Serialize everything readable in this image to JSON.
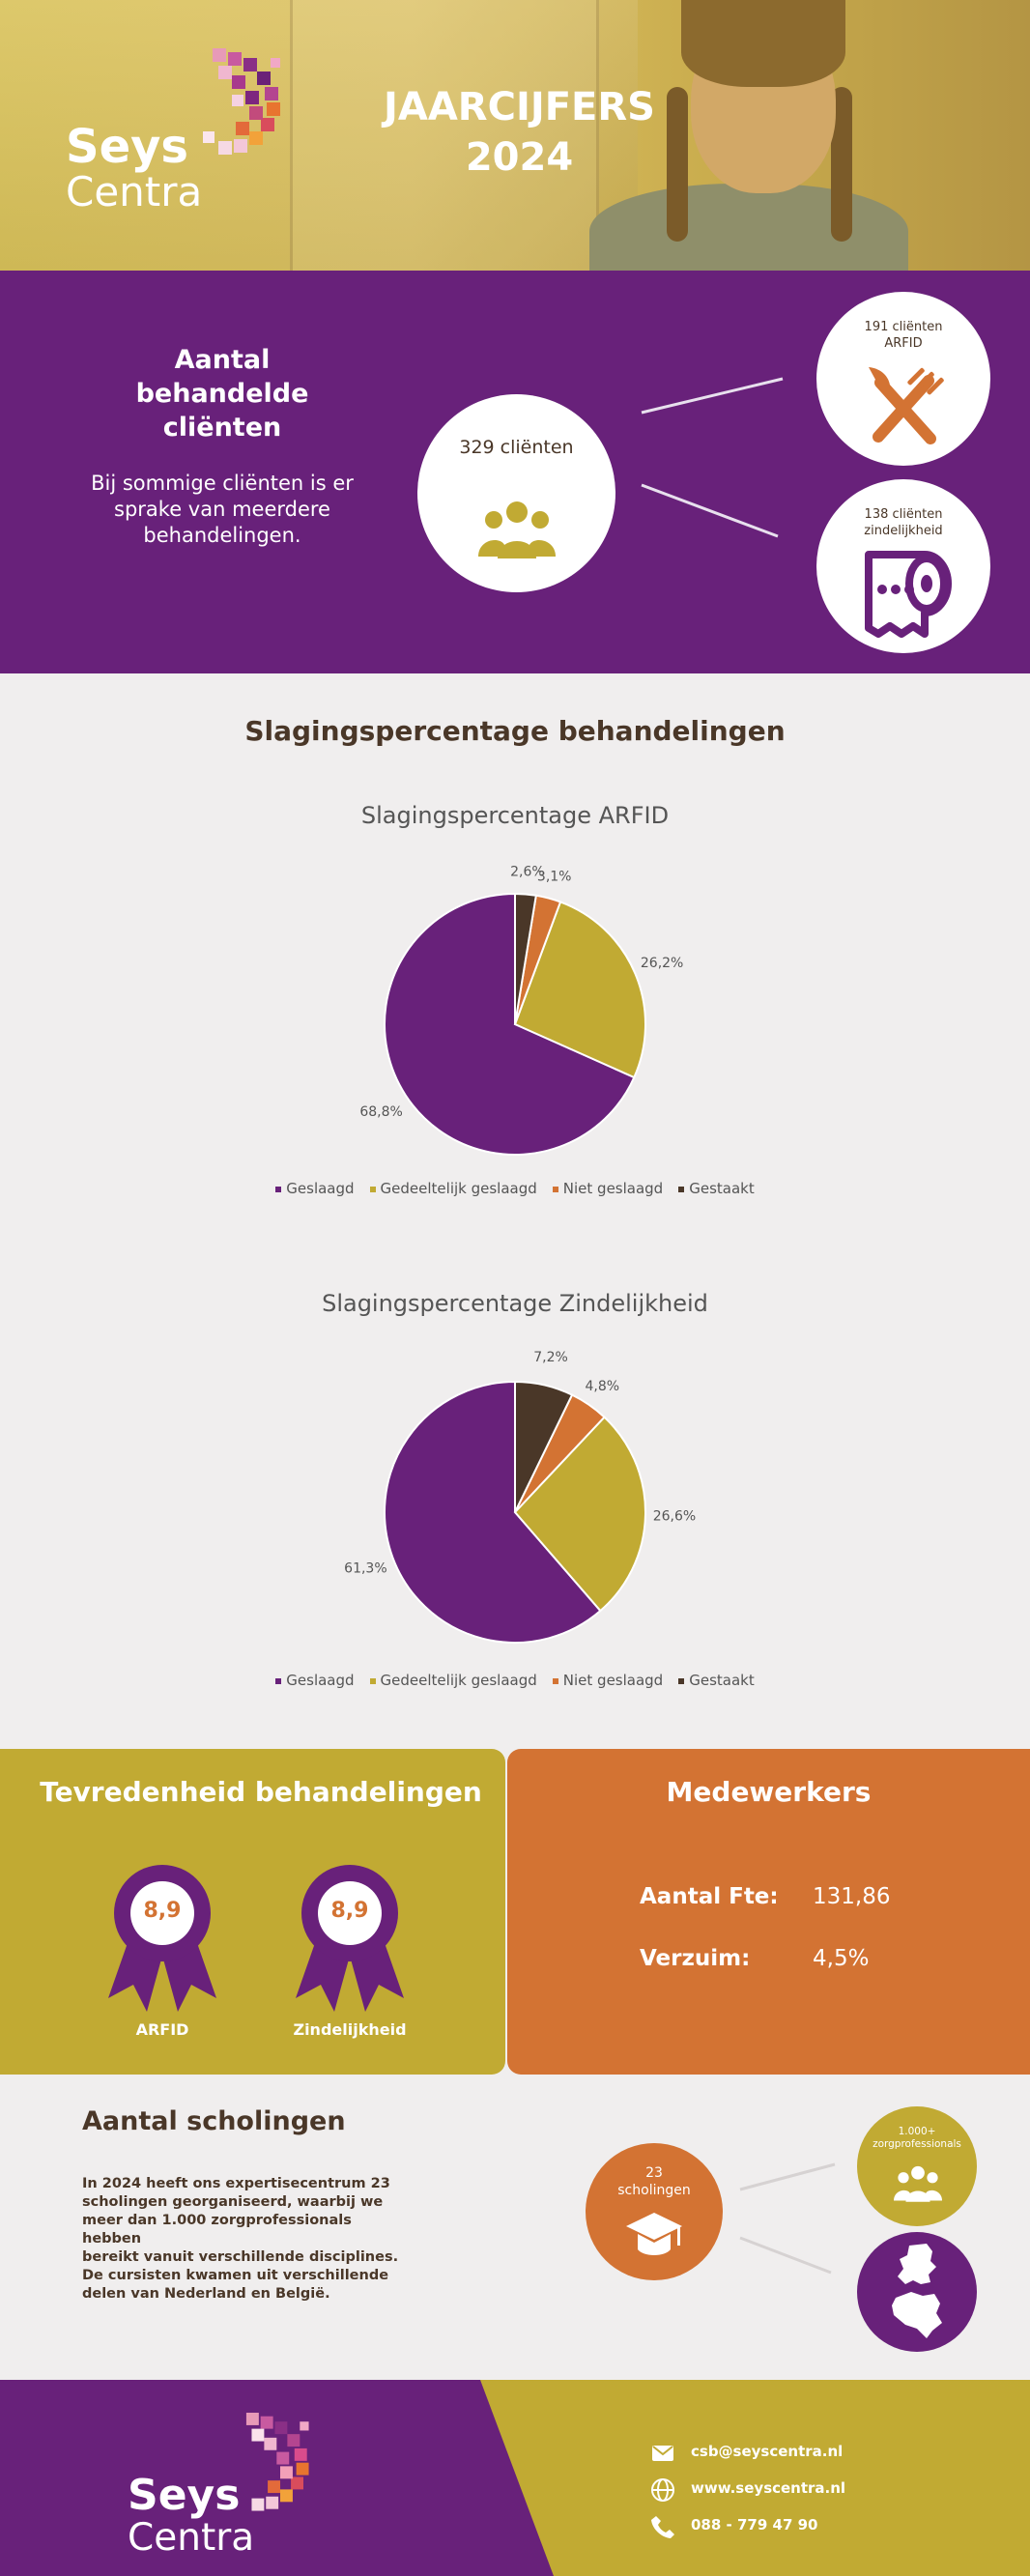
{
  "brand": {
    "logo_line1": "Seys",
    "logo_line2": "Centra",
    "colors": {
      "purple": "#68217a",
      "gold": "#c1aa33",
      "orange": "#d37333",
      "dark": "#4a3728",
      "background": "#f0eeee"
    }
  },
  "header": {
    "title_line1": "JAARCIJFERS",
    "title_line2": "2024"
  },
  "clients": {
    "heading_line1": "Aantal",
    "heading_line2": "behandelde",
    "heading_line3": "cliënten",
    "note_line1": "Bij sommige cliënten is er",
    "note_line2": "sprake van meerdere",
    "note_line3": "behandelingen.",
    "total_label": "329 cliënten",
    "total_icon": "people-group-icon",
    "arfid_line1": "191 cliënten",
    "arfid_line2": "ARFID",
    "arfid_icon": "fork-knife-icon",
    "zind_line1": "138 cliënten",
    "zind_line2": "zindelijkheid",
    "zind_icon": "toilet-roll-icon"
  },
  "success": {
    "title": "Slagingspercentage behandelingen"
  },
  "chart_data": [
    {
      "type": "pie",
      "title": "Slagingspercentage ARFID",
      "categories": [
        "Geslaagd",
        "Gedeeltelijk geslaagd",
        "Niet geslaagd",
        "Gestaakt"
      ],
      "values": [
        68.8,
        26.2,
        3.1,
        2.6
      ],
      "labels": [
        "68,8%",
        "26,2%",
        "3,1%",
        "2,6%"
      ],
      "colors": [
        "#68217a",
        "#c1aa33",
        "#d37333",
        "#4a3728"
      ],
      "legend": "bottom"
    },
    {
      "type": "pie",
      "title": "Slagingspercentage Zindelijkheid",
      "categories": [
        "Geslaagd",
        "Gedeeltelijk geslaagd",
        "Niet geslaagd",
        "Gestaakt"
      ],
      "values": [
        61.3,
        26.6,
        4.8,
        7.2
      ],
      "labels": [
        "61,3%",
        "26,6%",
        "4,8%",
        "7,2%"
      ],
      "colors": [
        "#68217a",
        "#c1aa33",
        "#d37333",
        "#4a3728"
      ],
      "legend": "bottom"
    }
  ],
  "satisfaction": {
    "title": "Tevredenheid behandelingen",
    "arfid_score": "8,9",
    "arfid_label": "ARFID",
    "zind_score": "8,9",
    "zind_label": "Zindelijkheid"
  },
  "staff": {
    "title": "Medewerkers",
    "fte_label": "Aantal Fte:",
    "fte_value": "131,86",
    "absence_label": "Verzuim:",
    "absence_value": "4,5%"
  },
  "training": {
    "title": "Aantal scholingen",
    "p1_line1": "In 2024 heeft ons expertisecentrum 23",
    "p1_line2": "scholingen georganiseerd, waarbij we",
    "p1_line3": "meer dan 1.000 zorgprofessionals hebben",
    "p1_line4": "bereikt vanuit verschillende disciplines.",
    "p2_line1": "De cursisten kwamen uit verschillende",
    "p2_line2": "delen van Nederland en België.",
    "count_line1": "23",
    "count_line2": "scholingen",
    "count_icon": "graduation-cap-icon",
    "prof_line1": "1.000+",
    "prof_line2": "zorgprofessionals",
    "prof_icon": "people-group-icon",
    "map_icon": "netherlands-belgium-map-icon"
  },
  "footer": {
    "email": "csb@seyscentra.nl",
    "website": "www.seyscentra.nl",
    "phone": "088 - 779 47 90"
  }
}
